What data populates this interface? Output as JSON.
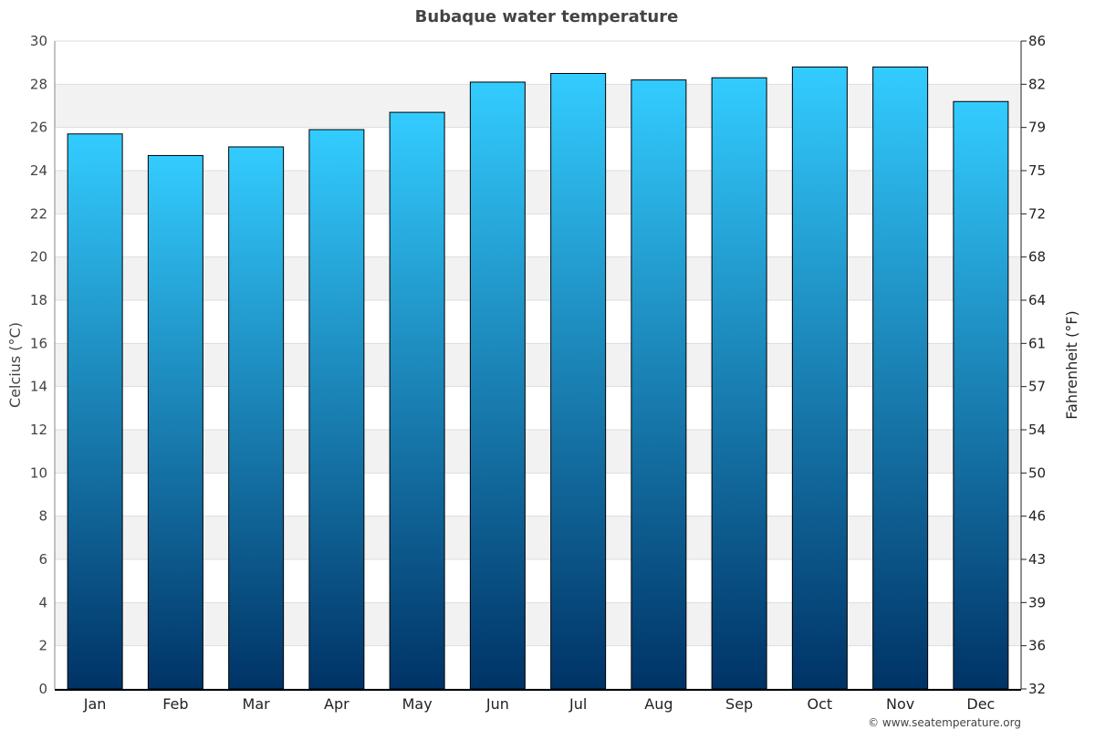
{
  "chart_data": {
    "type": "bar",
    "title": "Bubaque water temperature",
    "ylabel": "Celcius (°C)",
    "ylabel_right": "Fahrenheit (°F)",
    "categories": [
      "Jan",
      "Feb",
      "Mar",
      "Apr",
      "May",
      "Jun",
      "Jul",
      "Aug",
      "Sep",
      "Oct",
      "Nov",
      "Dec"
    ],
    "values": [
      25.7,
      24.7,
      25.1,
      25.9,
      26.7,
      28.1,
      28.5,
      28.2,
      28.3,
      28.8,
      28.8,
      27.2
    ],
    "ylim": [
      0,
      30
    ],
    "yticks": [
      0,
      2,
      4,
      6,
      8,
      10,
      12,
      14,
      16,
      18,
      20,
      22,
      24,
      26,
      28,
      30
    ],
    "yticks_right": [
      "32",
      "36",
      "39",
      "43",
      "46",
      "50",
      "54",
      "57",
      "61",
      "64",
      "68",
      "72",
      "75",
      "79",
      "82",
      "86"
    ],
    "grid": true,
    "bar_gradient": [
      "#33ccff",
      "#003366"
    ]
  },
  "footer": "© www.seatemperature.org"
}
